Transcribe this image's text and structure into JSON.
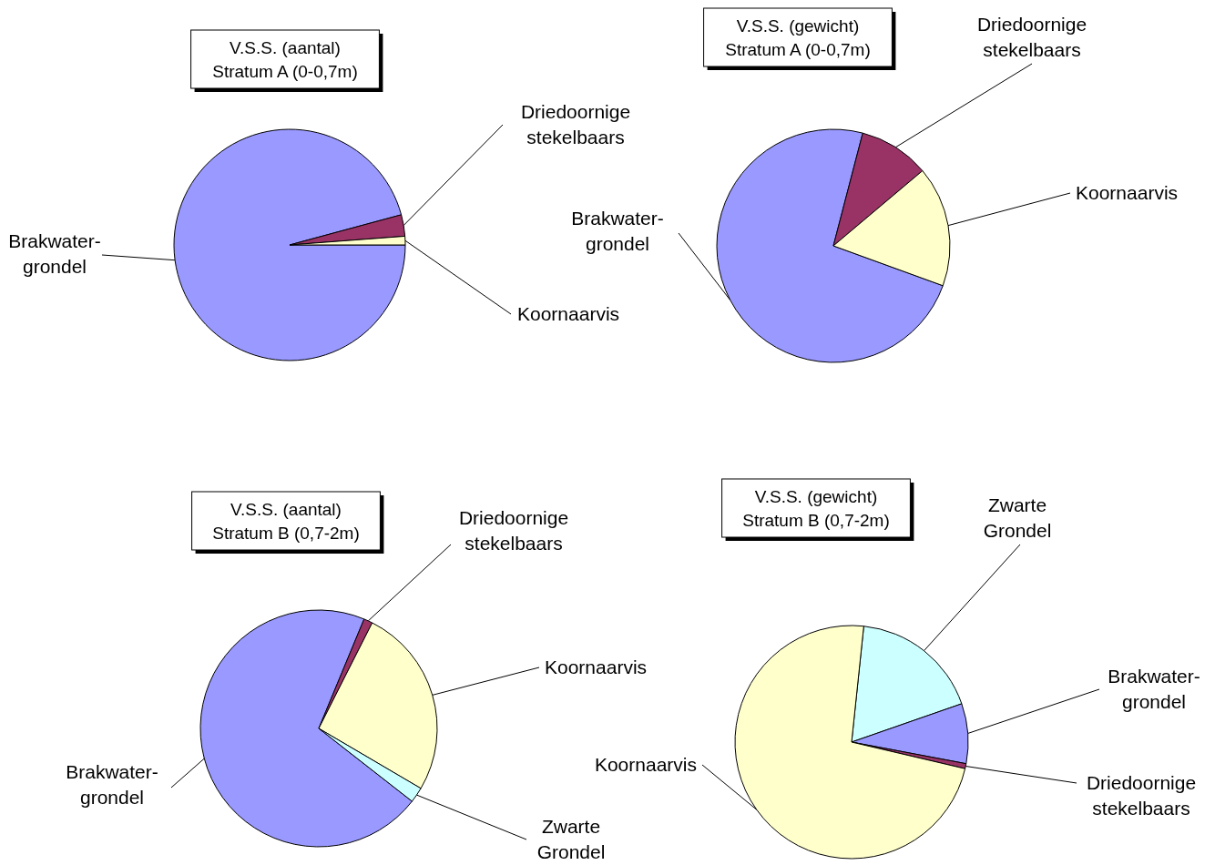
{
  "chart_data": [
    {
      "type": "pie",
      "title": "V.S.S. (aantal)\nStratum A (0-0,7m)",
      "categories": [
        "Brakwater-\ngrondel",
        "Driedoornige\nstekelbaars",
        "Koornaarvis"
      ],
      "values": [
        95.8,
        3.0,
        1.2
      ],
      "colors": [
        "#9999ff",
        "#993366",
        "#ffffcc"
      ]
    },
    {
      "type": "pie",
      "title": "V.S.S. (gewicht)\nStratum A (0-0,7m)",
      "categories": [
        "Brakwater-\ngrondel",
        "Driedoornige\nstekelbaars",
        "Koornaarvis"
      ],
      "values": [
        73.5,
        9.8,
        16.7
      ],
      "colors": [
        "#9999ff",
        "#993366",
        "#ffffcc"
      ]
    },
    {
      "type": "pie",
      "title": "V.S.S. (aantal)\nStratum B (0,7-2m)",
      "categories": [
        "Brakwater-\ngrondel",
        "Driedoornige\nstekelbaars",
        "Koornaarvis",
        "Zwarte\nGrondel"
      ],
      "values": [
        70.7,
        1.2,
        26.0,
        2.1
      ],
      "colors": [
        "#9999ff",
        "#993366",
        "#ffffcc",
        "#ccffff"
      ]
    },
    {
      "type": "pie",
      "title": "V.S.S. (gewicht)\nStratum B (0,7-2m)",
      "categories": [
        "Zwarte\nGrondel",
        "Brakwater-\ngrondel",
        "Driedoornige\nstekelbaars",
        "Koornaarvis"
      ],
      "values": [
        18.0,
        8.3,
        0.7,
        73.0
      ],
      "colors": [
        "#ccffff",
        "#9999ff",
        "#993366",
        "#ffffcc"
      ]
    }
  ]
}
